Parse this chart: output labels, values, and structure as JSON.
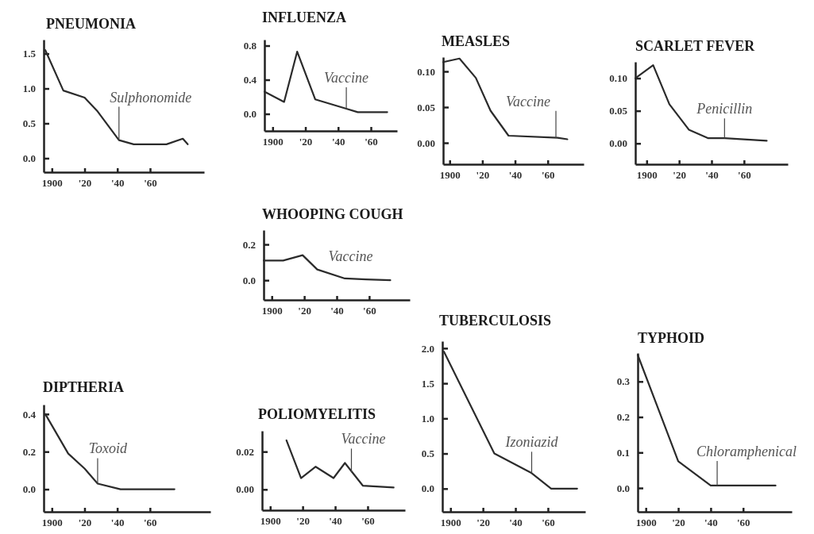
{
  "chart_data": [
    {
      "type": "line",
      "title": "PNEUMONIA",
      "x": [
        1896,
        1907,
        1920,
        1928,
        1941,
        1950,
        1970,
        1980,
        1983
      ],
      "series": [
        {
          "color": "#2b2b2b",
          "values": [
            1.55,
            0.97,
            0.87,
            0.67,
            0.26,
            0.2,
            0.2,
            0.28,
            0.2
          ]
        }
      ],
      "xlim": [
        1895,
        1993
      ],
      "xticks": [
        {
          "value": 1900,
          "label": "1900"
        },
        {
          "value": 1920,
          "label": "'20"
        },
        {
          "value": 1940,
          "label": "'40"
        },
        {
          "value": 1960,
          "label": "'60"
        }
      ],
      "ylim": [
        -0.2,
        1.7
      ],
      "yticks": [
        {
          "value": 0,
          "label": "0.0"
        },
        0.5,
        {
          "value": 1,
          "label": "1.0"
        },
        1.5
      ],
      "annotations": [
        {
          "text": "Sulphonomide",
          "x": 1941,
          "y": 0.26
        }
      ]
    },
    {
      "type": "line",
      "title": "INFLUENZA",
      "x": [
        1895,
        1907,
        1915,
        1926,
        1945,
        1952,
        1970
      ],
      "series": [
        {
          "color": "#2b2b2b",
          "values": [
            0.26,
            0.14,
            0.73,
            0.17,
            0.06,
            0.02,
            0.02
          ]
        }
      ],
      "xlim": [
        1895,
        1976
      ],
      "xticks": [
        {
          "value": 1900,
          "label": "1900"
        },
        {
          "value": 1920,
          "label": "'20"
        },
        {
          "value": 1940,
          "label": "'40"
        },
        {
          "value": 1960,
          "label": "'60"
        }
      ],
      "ylim": [
        -0.2,
        0.87
      ],
      "yticks": [
        {
          "value": 0,
          "label": "0.0"
        },
        0.4,
        0.8
      ],
      "annotations": [
        {
          "text": "Vaccine",
          "x": 1945,
          "y": 0.06
        }
      ]
    },
    {
      "type": "line",
      "title": "MEASLES",
      "x": [
        1896,
        1906,
        1916,
        1925,
        1936,
        1966,
        1972
      ],
      "series": [
        {
          "color": "#2b2b2b",
          "values": [
            0.113,
            0.118,
            0.091,
            0.045,
            0.01,
            0.007,
            0.005
          ]
        }
      ],
      "xlim": [
        1896,
        1982
      ],
      "xticks": [
        {
          "value": 1900,
          "label": "1900"
        },
        {
          "value": 1920,
          "label": "'20"
        },
        {
          "value": 1940,
          "label": "'40"
        },
        {
          "value": 1960,
          "label": "'60"
        }
      ],
      "ylim": [
        -0.03,
        0.12
      ],
      "yticks": [
        {
          "value": 0,
          "label": "0.00"
        },
        0.05,
        {
          "value": 0.1,
          "label": "0.10"
        }
      ],
      "annotations": [
        {
          "text": "Vaccine",
          "x": 1965,
          "y": 0.007
        }
      ]
    },
    {
      "type": "line",
      "title": "SCARLET FEVER",
      "x": [
        1893,
        1904,
        1914,
        1926,
        1938,
        1948,
        1974
      ],
      "series": [
        {
          "color": "#2b2b2b",
          "values": [
            0.1,
            0.12,
            0.06,
            0.021,
            0.008,
            0.008,
            0.004
          ]
        }
      ],
      "xlim": [
        1893,
        1987
      ],
      "xticks": [
        {
          "value": 1900,
          "label": "1900"
        },
        {
          "value": 1920,
          "label": "'20"
        },
        {
          "value": 1940,
          "label": "'40"
        },
        {
          "value": 1960,
          "label": "'60"
        }
      ],
      "ylim": [
        -0.032,
        0.125
      ],
      "yticks": [
        {
          "value": 0,
          "label": "0.00"
        },
        0.05,
        {
          "value": 0.1,
          "label": "0.10"
        }
      ],
      "annotations": [
        {
          "text": "Penicillin",
          "x": 1948,
          "y": 0.008
        }
      ]
    },
    {
      "type": "line",
      "title": "WHOOPING COUGH",
      "x": [
        1895,
        1907,
        1919,
        1928,
        1945,
        1958,
        1973
      ],
      "series": [
        {
          "color": "#2b2b2b",
          "values": [
            0.11,
            0.11,
            0.14,
            0.06,
            0.01,
            0.005,
            0
          ]
        }
      ],
      "xlim": [
        1895,
        1985
      ],
      "xticks": [
        {
          "value": 1900,
          "label": "1900"
        },
        {
          "value": 1920,
          "label": "'20"
        },
        {
          "value": 1940,
          "label": "'40"
        },
        {
          "value": 1960,
          "label": "'60"
        }
      ],
      "ylim": [
        -0.11,
        0.28
      ],
      "yticks": [
        {
          "value": 0,
          "label": "0.0"
        },
        0.2
      ],
      "annotations": [
        {
          "text": "Vaccine",
          "x": 1951,
          "y": 0.01
        }
      ]
    },
    {
      "type": "line",
      "title": "DIPTHERIA",
      "x": [
        1896,
        1910,
        1920,
        1928,
        1942,
        1975
      ],
      "series": [
        {
          "color": "#2b2b2b",
          "values": [
            0.4,
            0.19,
            0.11,
            0.03,
            0,
            0
          ]
        }
      ],
      "xlim": [
        1895,
        1997
      ],
      "xticks": [
        {
          "value": 1900,
          "label": "1900"
        },
        {
          "value": 1920,
          "label": "'20"
        },
        {
          "value": 1940,
          "label": "'40"
        },
        {
          "value": 1960,
          "label": "'60"
        }
      ],
      "ylim": [
        -0.12,
        0.45
      ],
      "yticks": [
        {
          "value": 0,
          "label": "0.0"
        },
        0.2,
        0.4
      ],
      "annotations": [
        {
          "text": "Toxoid",
          "x": 1928,
          "y": 0.03
        }
      ]
    },
    {
      "type": "line",
      "title": "POLIOMYELITIS",
      "x": [
        1910,
        1919,
        1928,
        1939,
        1946,
        1957,
        1976
      ],
      "series": [
        {
          "color": "#2b2b2b",
          "values": [
            0.026,
            0.006,
            0.012,
            0.006,
            0.014,
            0.002,
            0.001
          ]
        }
      ],
      "xlim": [
        1895,
        1983
      ],
      "xticks": [
        {
          "value": 1900,
          "label": "1900"
        },
        {
          "value": 1920,
          "label": "'20"
        },
        {
          "value": 1940,
          "label": "'40"
        },
        {
          "value": 1960,
          "label": "'60"
        }
      ],
      "ylim": [
        -0.011,
        0.031
      ],
      "yticks": [
        {
          "value": 0,
          "label": "0.00"
        },
        0.02
      ],
      "annotations": [
        {
          "text": "Vaccine",
          "x": 1950,
          "y": 0.009
        }
      ]
    },
    {
      "type": "line",
      "title": "TUBERCULOSIS",
      "x": [
        1896,
        1927,
        1950,
        1962,
        1978
      ],
      "series": [
        {
          "color": "#2b2b2b",
          "values": [
            1.95,
            0.5,
            0.22,
            0,
            0
          ]
        }
      ],
      "xlim": [
        1895,
        1983
      ],
      "xticks": [
        {
          "value": 1900,
          "label": "1900"
        },
        {
          "value": 1920,
          "label": "'20"
        },
        {
          "value": 1940,
          "label": "'40"
        },
        {
          "value": 1960,
          "label": "'60"
        }
      ],
      "ylim": [
        -0.33,
        2.1
      ],
      "yticks": [
        {
          "value": 0,
          "label": "0.0"
        },
        0.5,
        {
          "value": 1,
          "label": "1.0"
        },
        1.5,
        {
          "value": 2,
          "label": "2.0"
        }
      ],
      "annotations": [
        {
          "text": "Izoniazid",
          "x": 1950,
          "y": 0.22
        }
      ]
    },
    {
      "type": "line",
      "title": "TYPHOID",
      "x": [
        1895,
        1920,
        1940,
        1980
      ],
      "series": [
        {
          "color": "#2b2b2b",
          "values": [
            0.375,
            0.075,
            0.007,
            0.007
          ]
        }
      ],
      "xlim": [
        1895,
        1990
      ],
      "xticks": [
        {
          "value": 1900,
          "label": "1900"
        },
        {
          "value": 1920,
          "label": "'20"
        },
        {
          "value": 1940,
          "label": "'40"
        },
        {
          "value": 1960,
          "label": "'60"
        }
      ],
      "ylim": [
        -0.067,
        0.38
      ],
      "yticks": [
        {
          "value": 0,
          "label": "0.0"
        },
        0.1,
        0.2,
        0.3
      ],
      "annotations": [
        {
          "text": "Chloramphenical",
          "x": 1944,
          "y": 0.007
        }
      ]
    }
  ]
}
